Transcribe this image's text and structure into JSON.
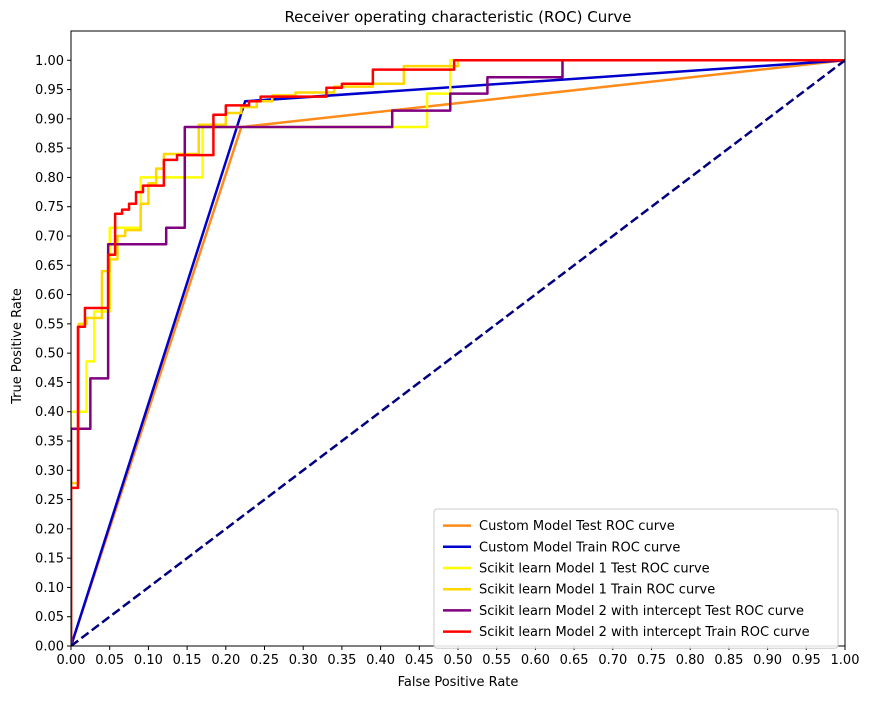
{
  "chart_data": {
    "type": "line",
    "title": "Receiver operating characteristic (ROC) Curve",
    "xlabel": "False Positive Rate",
    "ylabel": "True Positive Rate",
    "xlim": [
      0,
      1
    ],
    "ylim": [
      0,
      1.05
    ],
    "xticks": [
      "0.00",
      "0.05",
      "0.10",
      "0.15",
      "0.20",
      "0.25",
      "0.30",
      "0.35",
      "0.40",
      "0.45",
      "0.50",
      "0.55",
      "0.60",
      "0.65",
      "0.70",
      "0.75",
      "0.80",
      "0.85",
      "0.90",
      "0.95",
      "1.00"
    ],
    "yticks": [
      "0.00",
      "0.05",
      "0.10",
      "0.15",
      "0.20",
      "0.25",
      "0.30",
      "0.35",
      "0.40",
      "0.45",
      "0.50",
      "0.55",
      "0.60",
      "0.65",
      "0.70",
      "0.75",
      "0.80",
      "0.85",
      "0.90",
      "0.95",
      "1.00"
    ],
    "grid": false,
    "legend_position": "bottom-right",
    "series": [
      {
        "name": "Custom Model Test ROC curve",
        "color": "#ff8c1a",
        "dashed": false,
        "points": [
          [
            0,
            0
          ],
          [
            0.22,
            0.886
          ],
          [
            1,
            1
          ]
        ]
      },
      {
        "name": "Custom Model Train ROC curve",
        "color": "#0000cc",
        "dashed": false,
        "points": [
          [
            0,
            0
          ],
          [
            0.225,
            0.93
          ],
          [
            1,
            1
          ]
        ]
      },
      {
        "name": "Scikit learn Model 1 Test ROC curve",
        "color": "#ffff00",
        "dashed": false,
        "points": [
          [
            0,
            0
          ],
          [
            0,
            0.4
          ],
          [
            0.02,
            0.4
          ],
          [
            0.02,
            0.486
          ],
          [
            0.03,
            0.486
          ],
          [
            0.03,
            0.571
          ],
          [
            0.05,
            0.571
          ],
          [
            0.05,
            0.714
          ],
          [
            0.09,
            0.714
          ],
          [
            0.09,
            0.8
          ],
          [
            0.17,
            0.8
          ],
          [
            0.17,
            0.886
          ],
          [
            0.46,
            0.886
          ],
          [
            0.46,
            0.943
          ],
          [
            0.49,
            0.943
          ],
          [
            0.49,
            1.0
          ],
          [
            0.68,
            1.0
          ],
          [
            0.68,
            1.0
          ],
          [
            1,
            1
          ]
        ]
      },
      {
        "name": "Scikit learn Model 1 Train ROC curve",
        "color": "#ffd700",
        "dashed": false,
        "points": [
          [
            0,
            0
          ],
          [
            0,
            0.278
          ],
          [
            0.01,
            0.278
          ],
          [
            0.01,
            0.55
          ],
          [
            0.02,
            0.55
          ],
          [
            0.02,
            0.56
          ],
          [
            0.04,
            0.56
          ],
          [
            0.04,
            0.64
          ],
          [
            0.05,
            0.64
          ],
          [
            0.05,
            0.66
          ],
          [
            0.06,
            0.66
          ],
          [
            0.06,
            0.7
          ],
          [
            0.07,
            0.7
          ],
          [
            0.07,
            0.71
          ],
          [
            0.09,
            0.71
          ],
          [
            0.09,
            0.755
          ],
          [
            0.1,
            0.755
          ],
          [
            0.1,
            0.79
          ],
          [
            0.11,
            0.79
          ],
          [
            0.11,
            0.815
          ],
          [
            0.12,
            0.815
          ],
          [
            0.12,
            0.84
          ],
          [
            0.165,
            0.84
          ],
          [
            0.165,
            0.89
          ],
          [
            0.2,
            0.89
          ],
          [
            0.2,
            0.91
          ],
          [
            0.22,
            0.91
          ],
          [
            0.22,
            0.92
          ],
          [
            0.24,
            0.92
          ],
          [
            0.24,
            0.93
          ],
          [
            0.26,
            0.93
          ],
          [
            0.26,
            0.94
          ],
          [
            0.29,
            0.94
          ],
          [
            0.29,
            0.945
          ],
          [
            0.34,
            0.945
          ],
          [
            0.34,
            0.955
          ],
          [
            0.39,
            0.955
          ],
          [
            0.39,
            0.96
          ],
          [
            0.43,
            0.96
          ],
          [
            0.43,
            0.99
          ],
          [
            0.5,
            0.99
          ],
          [
            0.5,
            1.0
          ],
          [
            1,
            1
          ]
        ]
      },
      {
        "name": "Scikit learn Model 2 with intercept Test ROC curve",
        "color": "#800080",
        "dashed": false,
        "points": [
          [
            0,
            0
          ],
          [
            0,
            0.371
          ],
          [
            0.025,
            0.371
          ],
          [
            0.025,
            0.457
          ],
          [
            0.048,
            0.457
          ],
          [
            0.048,
            0.686
          ],
          [
            0.123,
            0.686
          ],
          [
            0.123,
            0.714
          ],
          [
            0.147,
            0.714
          ],
          [
            0.147,
            0.886
          ],
          [
            0.415,
            0.886
          ],
          [
            0.415,
            0.914
          ],
          [
            0.49,
            0.914
          ],
          [
            0.49,
            0.943
          ],
          [
            0.538,
            0.943
          ],
          [
            0.538,
            0.971
          ],
          [
            0.635,
            0.971
          ],
          [
            0.635,
            1.0
          ],
          [
            1,
            1
          ]
        ]
      },
      {
        "name": "Scikit learn Model 2 with intercept Train ROC curve",
        "color": "#ff0000",
        "dashed": false,
        "points": [
          [
            0,
            0
          ],
          [
            0,
            0.27
          ],
          [
            0.009,
            0.27
          ],
          [
            0.009,
            0.545
          ],
          [
            0.018,
            0.545
          ],
          [
            0.018,
            0.577
          ],
          [
            0.048,
            0.577
          ],
          [
            0.048,
            0.668
          ],
          [
            0.057,
            0.668
          ],
          [
            0.057,
            0.738
          ],
          [
            0.066,
            0.738
          ],
          [
            0.066,
            0.745
          ],
          [
            0.075,
            0.745
          ],
          [
            0.075,
            0.755
          ],
          [
            0.084,
            0.755
          ],
          [
            0.084,
            0.775
          ],
          [
            0.093,
            0.775
          ],
          [
            0.093,
            0.786
          ],
          [
            0.12,
            0.786
          ],
          [
            0.12,
            0.83
          ],
          [
            0.137,
            0.83
          ],
          [
            0.137,
            0.838
          ],
          [
            0.184,
            0.838
          ],
          [
            0.184,
            0.907
          ],
          [
            0.2,
            0.907
          ],
          [
            0.2,
            0.923
          ],
          [
            0.23,
            0.923
          ],
          [
            0.23,
            0.93
          ],
          [
            0.245,
            0.93
          ],
          [
            0.245,
            0.938
          ],
          [
            0.33,
            0.938
          ],
          [
            0.33,
            0.953
          ],
          [
            0.35,
            0.953
          ],
          [
            0.35,
            0.96
          ],
          [
            0.39,
            0.96
          ],
          [
            0.39,
            0.984
          ],
          [
            0.495,
            0.984
          ],
          [
            0.495,
            1.0
          ],
          [
            1,
            1
          ]
        ]
      },
      {
        "name": "",
        "color": "#000080",
        "dashed": true,
        "points": [
          [
            0,
            0
          ],
          [
            1,
            1
          ]
        ]
      }
    ]
  }
}
